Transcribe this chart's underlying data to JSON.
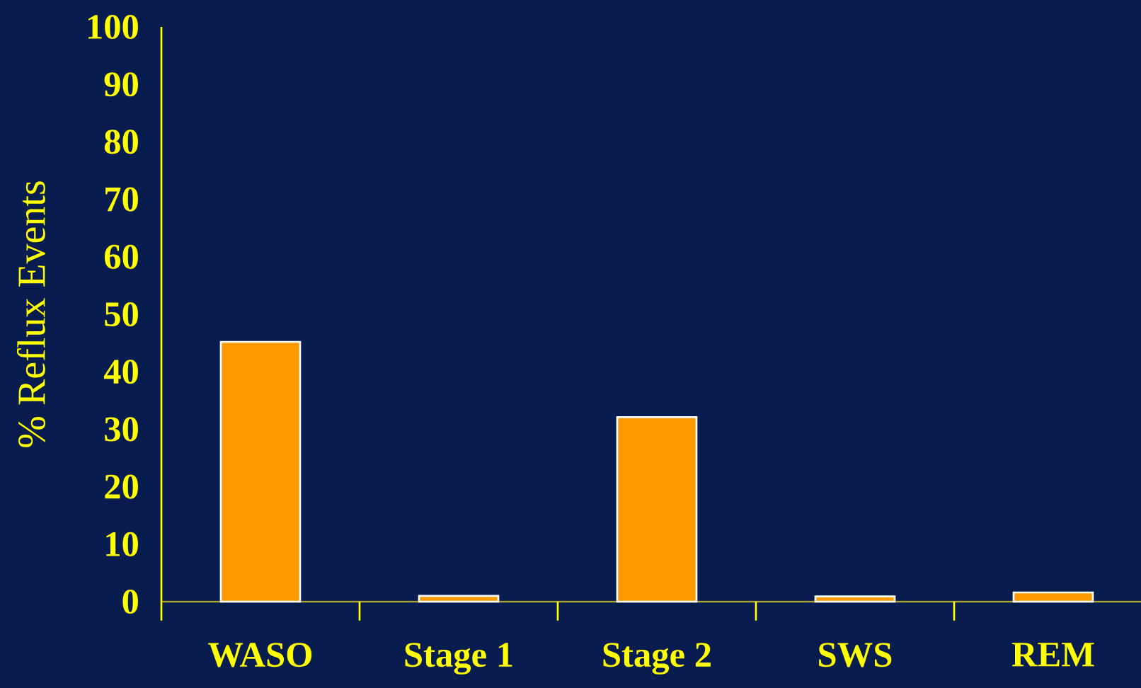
{
  "chart_data": {
    "type": "bar",
    "ylabel": "% Reflux Events",
    "categories": [
      "WASO",
      "Stage 1",
      "Stage 2",
      "SWS",
      "REM"
    ],
    "values": [
      45.2,
      1.0,
      32.1,
      0.9,
      1.6
    ],
    "color": "#ff9900",
    "ylim": [
      0,
      100
    ],
    "yticks": [
      0,
      10,
      20,
      30,
      40,
      50,
      60,
      70,
      80,
      90,
      100
    ]
  }
}
